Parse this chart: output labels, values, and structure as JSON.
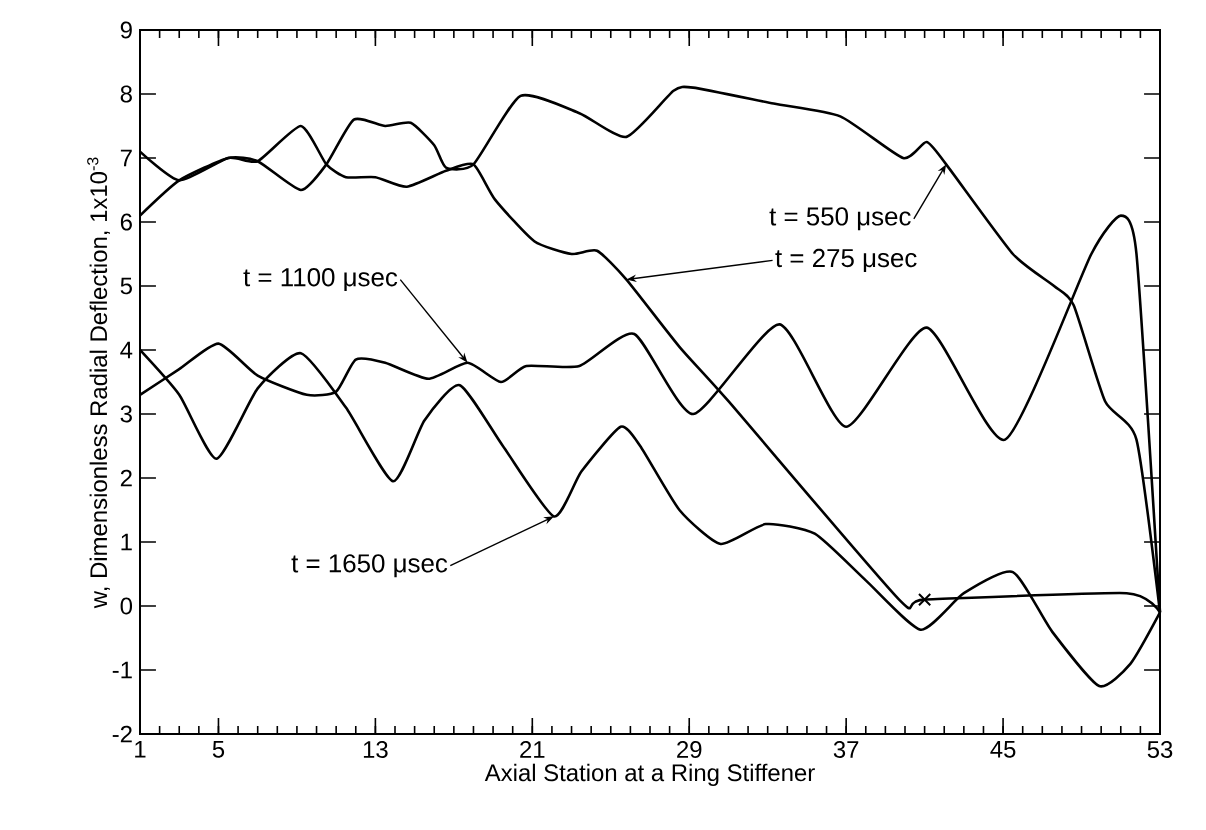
{
  "chart_data": {
    "type": "line",
    "xlabel": "Axial Station at a Ring Stiffener",
    "ylabel": "w, Dimensionless Radial Deflection, 1x10$^{-3}$",
    "xlim": [
      1,
      53
    ],
    "xticks": [
      1,
      5,
      13,
      21,
      29,
      37,
      45,
      53
    ],
    "ylim": [
      -2,
      9
    ],
    "yticks": [
      -2,
      -1,
      0,
      1,
      2,
      3,
      4,
      5,
      6,
      7,
      8,
      9
    ],
    "grid": false,
    "legend": false,
    "line_style": "solid",
    "marker": "none",
    "series": [
      {
        "color": "#000000",
        "x": [
          1,
          3,
          5.5,
          7,
          9.2,
          10.5,
          11.5,
          13,
          14.6,
          16.6,
          18,
          19.1,
          21.1,
          23,
          24.3,
          25.8,
          28.5,
          31,
          39.7,
          41,
          51.3,
          53
        ],
        "values": [
          7.1,
          6.65,
          7.0,
          6.95,
          7.5,
          6.9,
          6.7,
          6.7,
          6.55,
          6.8,
          6.9,
          6.35,
          5.7,
          5.5,
          5.55,
          5.1,
          4.05,
          3.2,
          0.1,
          0.1,
          0.2,
          -0.1
        ]
      },
      {
        "color": "#000000",
        "x": [
          1,
          3,
          5.5,
          7,
          9.2,
          10.5,
          11.9,
          13.5,
          14.8,
          16,
          16.6,
          18,
          20.4,
          23.4,
          25.8,
          28.2,
          29.2,
          33.3,
          36.7,
          39.9,
          41.1,
          42.1,
          45.5,
          47.6,
          48.6,
          50.2,
          51.8,
          53
        ],
        "values": [
          6.1,
          6.65,
          7.0,
          6.95,
          6.5,
          6.9,
          7.6,
          7.5,
          7.55,
          7.2,
          6.85,
          6.9,
          7.97,
          7.7,
          7.33,
          8.05,
          8.1,
          7.85,
          7.65,
          7.0,
          7.25,
          6.9,
          5.5,
          5.0,
          4.7,
          3.2,
          2.6,
          -0.1
        ]
      },
      {
        "color": "#000000",
        "x": [
          1,
          3,
          5,
          7,
          9.5,
          11,
          12,
          13.5,
          15.7,
          17.7,
          19.4,
          20.7,
          23.4,
          26.2,
          29.2,
          33.6,
          37,
          41.1,
          45.1,
          49.5,
          51,
          51.8,
          53
        ],
        "values": [
          3.3,
          3.7,
          4.1,
          3.6,
          3.3,
          3.35,
          3.85,
          3.8,
          3.55,
          3.8,
          3.5,
          3.75,
          3.75,
          4.25,
          3.0,
          4.4,
          2.8,
          4.35,
          2.6,
          5.5,
          6.1,
          5.5,
          -0.1
        ]
      },
      {
        "color": "#000000",
        "x": [
          1,
          3,
          4.9,
          7,
          9.2,
          11.5,
          13.9,
          15.5,
          17.3,
          19.5,
          22.1,
          23.5,
          25.5,
          26.5,
          28.5,
          30.6,
          32.9,
          35.4,
          38,
          40.8,
          43,
          45.5,
          47.5,
          49.9,
          51.5,
          53
        ],
        "values": [
          4.0,
          3.3,
          2.3,
          3.4,
          3.95,
          3.1,
          1.95,
          2.9,
          3.45,
          2.5,
          1.4,
          2.1,
          2.8,
          2.5,
          1.5,
          0.97,
          1.28,
          1.13,
          0.4,
          -0.37,
          0.2,
          0.53,
          -0.4,
          -1.25,
          -0.9,
          -0.1
        ]
      },
      {
        "type": "scatter",
        "marker": "cross",
        "color": "#000000",
        "x": [
          41
        ],
        "values": [
          0.1
        ]
      }
    ],
    "annotations": [
      {
        "text": "t = 550 μsec",
        "x": 42.1,
        "y": 6.9
      },
      {
        "text": "t = 275 μsec",
        "x": 25.8,
        "y": 5.1
      },
      {
        "text": "t = 1100 μsec",
        "x": 17.7,
        "y": 3.8
      },
      {
        "text": "t = 1650 μsec",
        "x": 22.1,
        "y": 1.4
      }
    ]
  }
}
